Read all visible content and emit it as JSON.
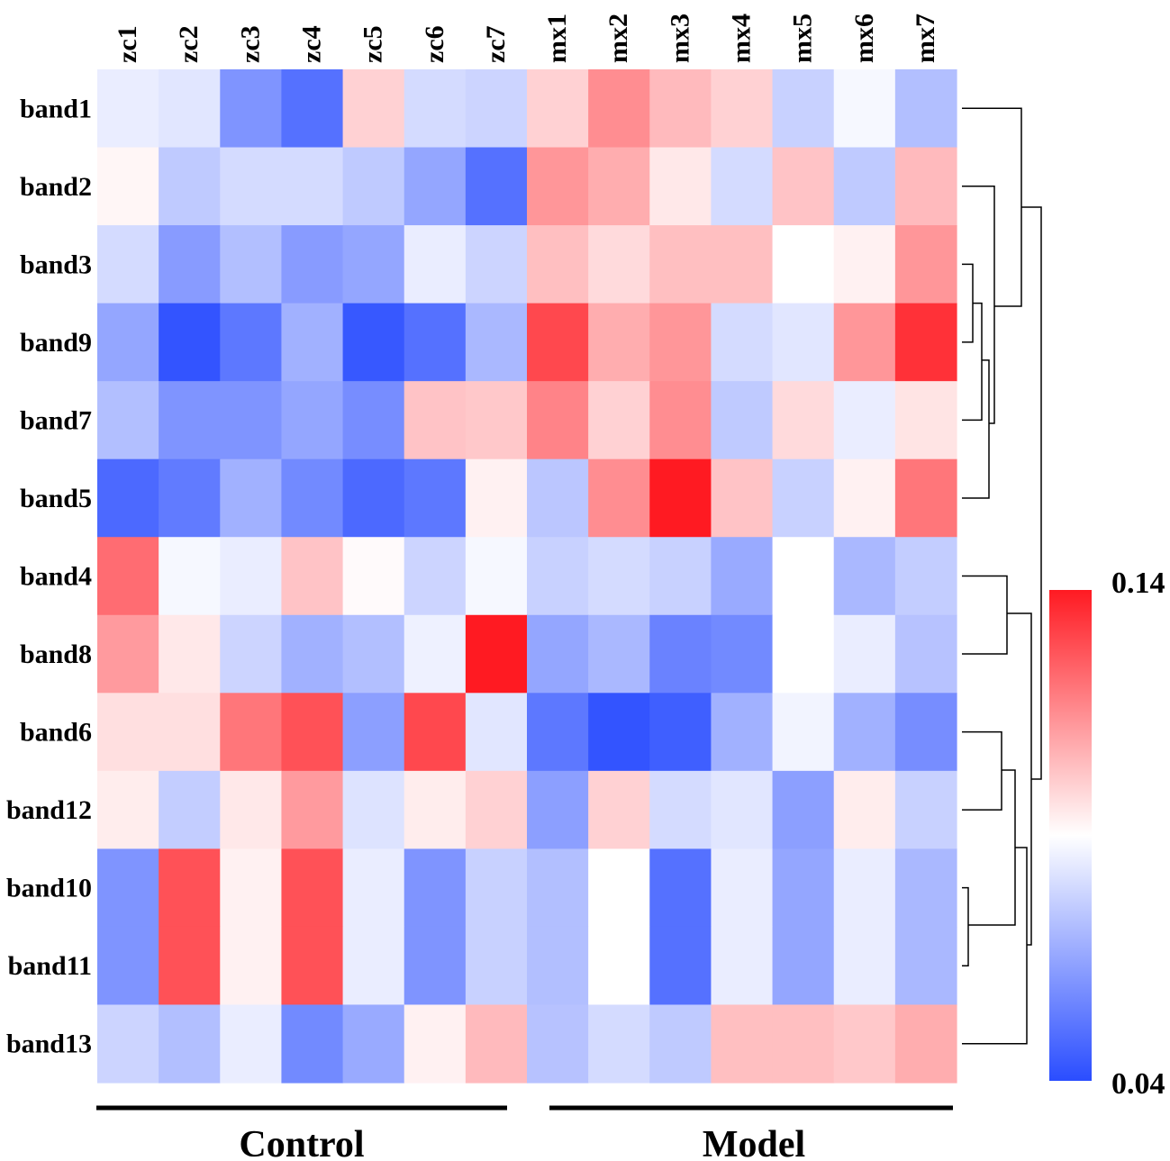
{
  "chart_data": {
    "type": "heatmap",
    "columns": [
      "zc1",
      "zc2",
      "zc3",
      "zc4",
      "zc5",
      "zc6",
      "zc7",
      "mx1",
      "mx2",
      "mx3",
      "mx4",
      "mx5",
      "mx6",
      "mx7"
    ],
    "rows": [
      "band1",
      "band2",
      "band3",
      "band9",
      "band7",
      "band5",
      "band4",
      "band8",
      "band6",
      "band12",
      "band10",
      "band11",
      "band13"
    ],
    "groups": [
      {
        "label": "Control",
        "columns": [
          "zc1",
          "zc2",
          "zc3",
          "zc4",
          "zc5",
          "zc6",
          "zc7"
        ]
      },
      {
        "label": "Model",
        "columns": [
          "mx1",
          "mx2",
          "mx3",
          "mx4",
          "mx5",
          "mx6",
          "mx7"
        ]
      }
    ],
    "values": [
      [
        0.085,
        0.083,
        0.06,
        0.05,
        0.1,
        0.08,
        0.078,
        0.1,
        0.115,
        0.105,
        0.1,
        0.077,
        0.088,
        0.072
      ],
      [
        0.092,
        0.075,
        0.08,
        0.08,
        0.075,
        0.065,
        0.05,
        0.113,
        0.108,
        0.095,
        0.08,
        0.103,
        0.075,
        0.105
      ],
      [
        0.08,
        0.062,
        0.072,
        0.062,
        0.065,
        0.085,
        0.078,
        0.104,
        0.098,
        0.104,
        0.104,
        0.09,
        0.093,
        0.113
      ],
      [
        0.065,
        0.042,
        0.052,
        0.068,
        0.043,
        0.05,
        0.07,
        0.13,
        0.108,
        0.113,
        0.08,
        0.083,
        0.113,
        0.135
      ],
      [
        0.072,
        0.06,
        0.06,
        0.065,
        0.058,
        0.103,
        0.102,
        0.117,
        0.1,
        0.115,
        0.075,
        0.098,
        0.085,
        0.096
      ],
      [
        0.048,
        0.053,
        0.068,
        0.057,
        0.048,
        0.052,
        0.093,
        0.074,
        0.115,
        0.14,
        0.103,
        0.077,
        0.093,
        0.12
      ],
      [
        0.122,
        0.088,
        0.085,
        0.103,
        0.091,
        0.078,
        0.088,
        0.077,
        0.08,
        0.077,
        0.066,
        0.09,
        0.07,
        0.076
      ],
      [
        0.112,
        0.095,
        0.078,
        0.068,
        0.072,
        0.086,
        0.14,
        0.065,
        0.07,
        0.055,
        0.057,
        0.09,
        0.085,
        0.073
      ],
      [
        0.097,
        0.097,
        0.12,
        0.128,
        0.063,
        0.13,
        0.083,
        0.052,
        0.042,
        0.045,
        0.068,
        0.087,
        0.068,
        0.058
      ],
      [
        0.094,
        0.076,
        0.095,
        0.112,
        0.082,
        0.094,
        0.1,
        0.063,
        0.1,
        0.08,
        0.083,
        0.063,
        0.094,
        0.077
      ],
      [
        0.06,
        0.128,
        0.093,
        0.128,
        0.085,
        0.06,
        0.077,
        0.072,
        0.09,
        0.05,
        0.085,
        0.065,
        0.085,
        0.07
      ],
      [
        0.06,
        0.128,
        0.093,
        0.128,
        0.085,
        0.06,
        0.077,
        0.072,
        0.09,
        0.05,
        0.085,
        0.065,
        0.085,
        0.07
      ],
      [
        0.078,
        0.072,
        0.085,
        0.057,
        0.066,
        0.093,
        0.105,
        0.073,
        0.08,
        0.075,
        0.104,
        0.104,
        0.102,
        0.108
      ]
    ],
    "colorbar": {
      "min": 0.04,
      "max": 0.14,
      "min_label": "0.04",
      "max_label": "0.14",
      "colors": {
        "low": "#2a4dff",
        "mid": "#ffffff",
        "high": "#ff1a22"
      }
    },
    "row_dendrogram": true,
    "legend": "right"
  }
}
